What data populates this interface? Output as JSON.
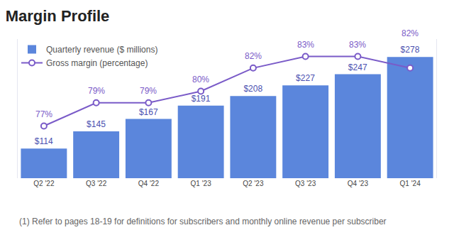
{
  "chart_data": {
    "type": "bar",
    "title": "Margin Profile",
    "categories": [
      "Q2 '22",
      "Q3 '22",
      "Q4 '22",
      "Q1 '23",
      "Q2 '23",
      "Q3 '23",
      "Q4 '23",
      "Q1 '24"
    ],
    "series": [
      {
        "name": "Quarterly revenue ($ millions)",
        "type": "bar",
        "color": "#5b86dc",
        "values": [
          114,
          145,
          167,
          191,
          208,
          227,
          247,
          278
        ],
        "value_labels": [
          "$114",
          "$145",
          "$167",
          "$191",
          "$208",
          "$227",
          "$247",
          "$278"
        ]
      },
      {
        "name": "Gross margin (percentage)",
        "type": "line",
        "axis": "y2",
        "color": "#7a5bc8",
        "marker": "circle",
        "values": [
          77,
          79,
          79,
          80,
          82,
          83,
          83,
          82
        ],
        "value_labels": [
          "77%",
          "79%",
          "79%",
          "80%",
          "82%",
          "83%",
          "83%",
          "82%"
        ]
      }
    ],
    "ylim": [
      61,
      310
    ],
    "y2lim": [
      72.5,
      84.5
    ],
    "grid": false,
    "legend": "upper left",
    "data_labels": true,
    "tick_labels": "x",
    "annotations": [
      "(1) Refer to pages 18-19 for definitions for subscribers and monthly online revenue per subscriber"
    ]
  }
}
